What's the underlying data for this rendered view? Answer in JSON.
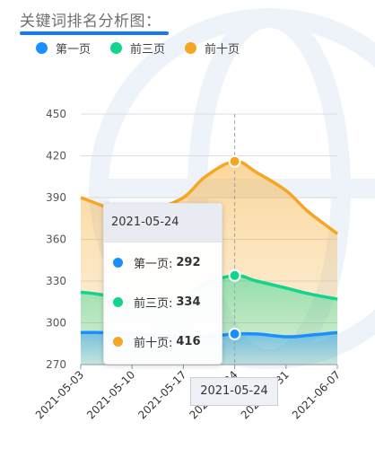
{
  "header": {
    "title": "关键词排名分析图："
  },
  "colors": {
    "accent": "#1677ff",
    "series": [
      "#1890ff",
      "#13d48c",
      "#f5a623"
    ]
  },
  "legend": [
    {
      "label": "第一页",
      "color": "#1890ff",
      "icon": "circle-icon"
    },
    {
      "label": "前三页",
      "color": "#13d48c",
      "icon": "circle-icon"
    },
    {
      "label": "前十页",
      "color": "#f5a623",
      "icon": "circle-icon"
    }
  ],
  "tooltip": {
    "date": "2021-05-24",
    "rows": [
      {
        "label": "第一页:",
        "value": "292",
        "color": "#1890ff"
      },
      {
        "label": "前三页:",
        "value": "334",
        "color": "#13d48c"
      },
      {
        "label": "前十页:",
        "value": "416",
        "color": "#f5a623"
      }
    ]
  },
  "axis_pointer": {
    "label": "2021-05-24"
  },
  "chart_data": {
    "type": "area",
    "x": [
      "2021-05-03",
      "2021-05-06",
      "2021-05-10",
      "2021-05-13",
      "2021-05-17",
      "2021-05-20",
      "2021-05-24",
      "2021-05-27",
      "2021-05-31",
      "2021-06-03",
      "2021-06-07"
    ],
    "x_ticks": [
      "2021-05-03",
      "2021-05-10",
      "2021-05-17",
      "2021-05-24",
      "2021-05-31",
      "2021-06-07"
    ],
    "y_ticks": [
      270,
      300,
      330,
      360,
      390,
      420,
      450
    ],
    "ylim": [
      270,
      450
    ],
    "grid": true,
    "legend_position": "top-left",
    "series": [
      {
        "name": "第一页",
        "color": "#1890ff",
        "values": [
          293,
          293,
          292,
          291,
          290,
          290,
          292,
          292,
          290,
          291,
          293
        ]
      },
      {
        "name": "前三页",
        "color": "#13d48c",
        "values": [
          322,
          320,
          314,
          311,
          318,
          328,
          334,
          330,
          325,
          321,
          317
        ]
      },
      {
        "name": "前十页",
        "color": "#f5a623",
        "values": [
          390,
          384,
          375,
          381,
          390,
          405,
          416,
          408,
          395,
          380,
          364
        ]
      }
    ],
    "highlight_x": "2021-05-24"
  }
}
